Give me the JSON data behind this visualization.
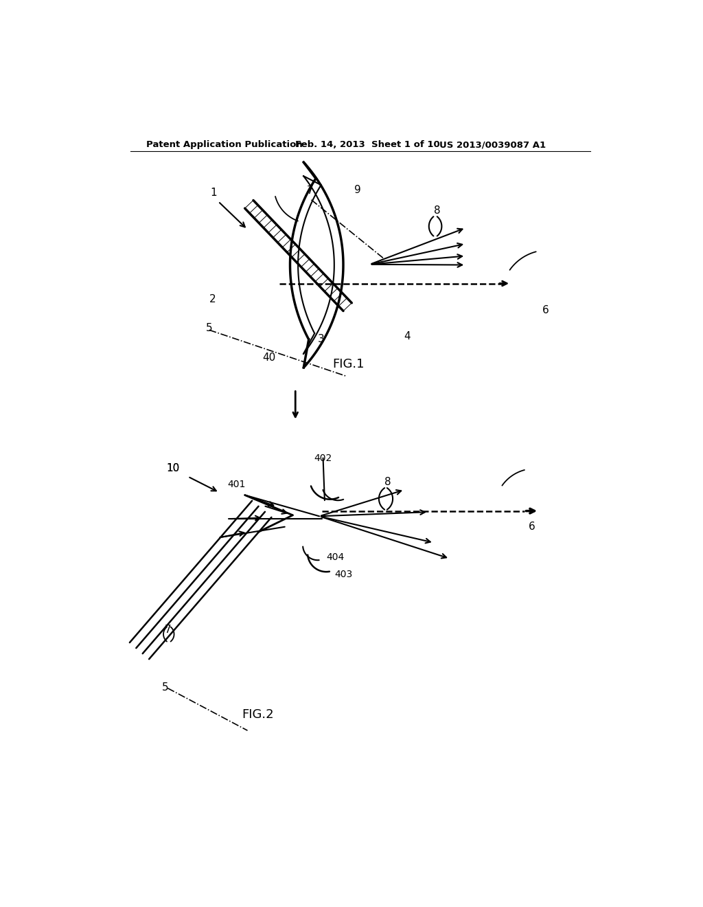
{
  "bg_color": "#ffffff",
  "header_left": "Patent Application Publication",
  "header_mid": "Feb. 14, 2013  Sheet 1 of 10",
  "header_right": "US 2013/0039087 A1",
  "fig1_label": "FIG.1",
  "fig2_label": "FIG.2",
  "lc": "#000000"
}
